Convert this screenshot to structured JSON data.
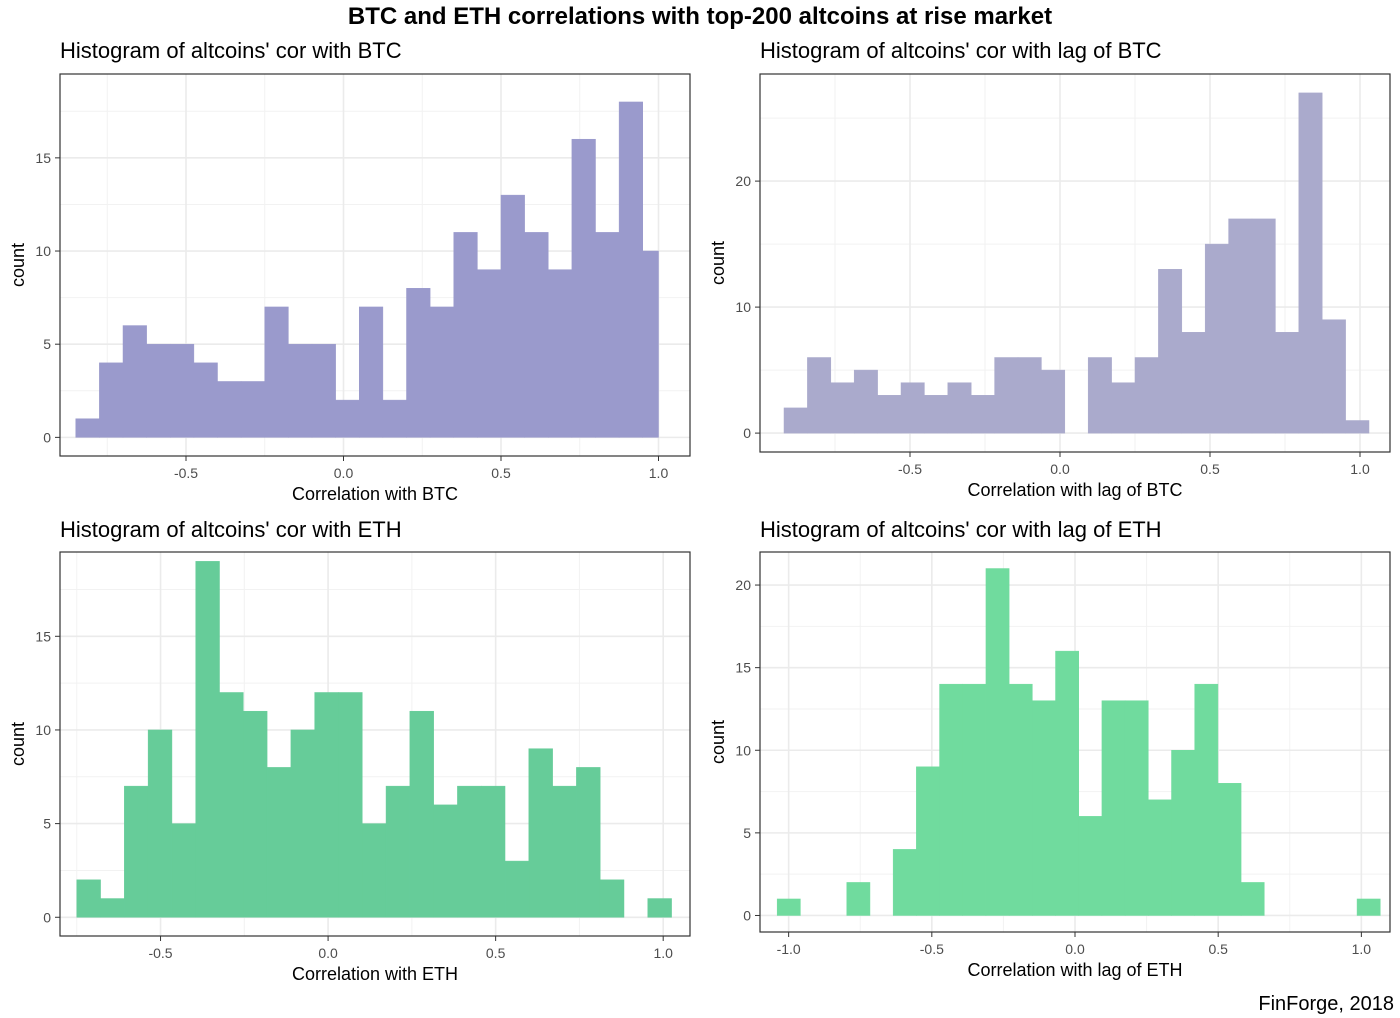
{
  "title": "BTC and ETH correlations with top-200 altcoins at rise market",
  "caption": "FinForge, 2018",
  "chart_data": [
    {
      "type": "bar",
      "title": "Histogram of altcoins' cor with BTC",
      "xlabel": "Correlation with BTC",
      "ylabel": "count",
      "color": "#9A9ACC",
      "xlim": [
        -0.9,
        1.1
      ],
      "ylim": [
        -1,
        19.5
      ],
      "xticks": [
        -0.5,
        0.0,
        0.5,
        1.0
      ],
      "xtick_labels": [
        "-0.5",
        "0.0",
        "0.5",
        "1.0"
      ],
      "yticks": [
        0,
        5,
        10,
        15
      ],
      "bin_edges": [
        -0.85,
        -0.775,
        -0.7,
        -0.625,
        -0.55,
        -0.475,
        -0.4,
        -0.325,
        -0.25,
        -0.175,
        -0.1,
        -0.025,
        0.05,
        0.125,
        0.2,
        0.275,
        0.35,
        0.425,
        0.5,
        0.575,
        0.65,
        0.725,
        0.8,
        0.875,
        0.95,
        1.0
      ],
      "values": [
        1,
        4,
        6,
        5,
        5,
        4,
        3,
        3,
        7,
        5,
        5,
        2,
        7,
        2,
        8,
        7,
        11,
        9,
        13,
        11,
        9,
        16,
        11,
        18,
        10
      ]
    },
    {
      "type": "bar",
      "title": "Histogram of altcoins' cor with lag of BTC",
      "xlabel": "Correlation with lag of BTC",
      "ylabel": "count",
      "color": "#AAAACC",
      "xlim": [
        -1.0,
        1.1
      ],
      "ylim": [
        -1.5,
        28.5
      ],
      "xticks": [
        -0.5,
        0.0,
        0.5,
        1.0
      ],
      "xtick_labels": [
        "-0.5",
        "0.0",
        "0.5",
        "1.0"
      ],
      "yticks": [
        0,
        10,
        20
      ],
      "bin_edges": [
        -0.92,
        -0.842,
        -0.764,
        -0.686,
        -0.608,
        -0.53,
        -0.452,
        -0.374,
        -0.296,
        -0.218,
        -0.14,
        -0.062,
        0.016,
        0.094,
        0.172,
        0.25,
        0.328,
        0.406,
        0.484,
        0.562,
        0.64,
        0.718,
        0.796,
        0.874,
        0.952,
        1.03
      ],
      "values": [
        2,
        6,
        4,
        5,
        3,
        4,
        3,
        4,
        3,
        6,
        6,
        5,
        0,
        6,
        4,
        6,
        13,
        8,
        15,
        17,
        17,
        8,
        27,
        9,
        1
      ]
    },
    {
      "type": "bar",
      "title": "Histogram of altcoins' cor with ETH",
      "xlabel": "Correlation with ETH",
      "ylabel": "count",
      "color": "#66CC99",
      "xlim": [
        -0.8,
        1.08
      ],
      "ylim": [
        -1,
        19.5
      ],
      "xticks": [
        -0.5,
        0.0,
        0.5,
        1.0
      ],
      "xtick_labels": [
        "-0.5",
        "0.0",
        "0.5",
        "1.0"
      ],
      "yticks": [
        0,
        5,
        10,
        15
      ],
      "bin_edges": [
        -0.75,
        -0.679,
        -0.608,
        -0.537,
        -0.466,
        -0.395,
        -0.324,
        -0.253,
        -0.182,
        -0.111,
        -0.04,
        0.031,
        0.102,
        0.173,
        0.244,
        0.315,
        0.386,
        0.457,
        0.528,
        0.599,
        0.67,
        0.741,
        0.812,
        0.883,
        0.954,
        1.025
      ],
      "values": [
        2,
        1,
        7,
        10,
        5,
        19,
        12,
        11,
        8,
        10,
        12,
        12,
        5,
        7,
        11,
        6,
        7,
        7,
        3,
        9,
        7,
        8,
        2,
        0,
        1
      ]
    },
    {
      "type": "bar",
      "title": "Histogram of altcoins' cor with lag of ETH",
      "xlabel": "Correlation with lag of ETH",
      "ylabel": "count",
      "color": "#70DB9E",
      "xlim": [
        -1.1,
        1.1
      ],
      "ylim": [
        -1,
        22
      ],
      "xticks": [
        -1.0,
        -0.5,
        0.0,
        0.5,
        1.0
      ],
      "xtick_labels": [
        "-1.0",
        "-0.5",
        "0.0",
        "0.5",
        "1.0"
      ],
      "yticks": [
        0,
        5,
        10,
        15,
        20
      ],
      "bin_edges": [
        -1.04,
        -0.959,
        -0.878,
        -0.797,
        -0.716,
        -0.635,
        -0.554,
        -0.473,
        -0.392,
        -0.311,
        -0.23,
        -0.149,
        -0.068,
        0.013,
        0.094,
        0.175,
        0.256,
        0.337,
        0.418,
        0.499,
        0.58,
        0.661,
        0.742,
        0.823,
        0.904,
        0.985,
        1.066
      ],
      "values": [
        1,
        0,
        0,
        2,
        0,
        4,
        9,
        14,
        14,
        21,
        14,
        13,
        16,
        6,
        13,
        13,
        7,
        10,
        14,
        8,
        2,
        0,
        0,
        0,
        0,
        1
      ]
    }
  ]
}
